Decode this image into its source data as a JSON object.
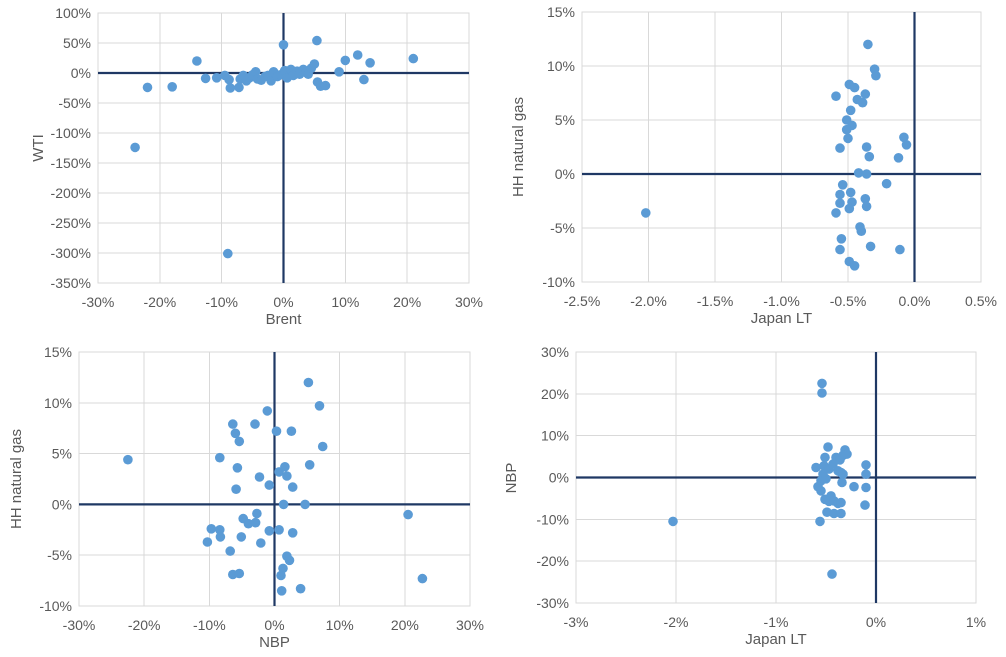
{
  "colors": {
    "background": "#ffffff",
    "dot_fill": "#5B9BD5",
    "zero_line": "#1F3864",
    "gridline": "#D9D9D9",
    "plot_border": "#D9D9D9",
    "label_text": "#595959"
  },
  "chart_data": [
    {
      "type": "scatter",
      "xlabel": "Brent",
      "ylabel": "WTI",
      "xlim": [
        -30,
        30
      ],
      "ylim": [
        -350,
        100
      ],
      "xticks": [
        -30,
        -20,
        -10,
        0,
        10,
        20,
        30
      ],
      "xtick_labels": [
        "-30%",
        "-20%",
        "-10%",
        "0%",
        "10%",
        "20%",
        "30%"
      ],
      "yticks": [
        100,
        50,
        0,
        -50,
        -100,
        -150,
        -200,
        -250,
        -300,
        -350
      ],
      "ytick_labels": [
        "100%",
        "50%",
        "0%",
        "-50%",
        "-100%",
        "-150%",
        "-200%",
        "-250%",
        "-300%",
        "-350%"
      ],
      "zero_cross": [
        0,
        0
      ],
      "grid": true,
      "legend": "none",
      "points": [
        [
          -24,
          -124
        ],
        [
          -9,
          -301
        ],
        [
          -22,
          -24
        ],
        [
          -18,
          -23
        ],
        [
          -14,
          20
        ],
        [
          -12.6,
          -9
        ],
        [
          -10.8,
          -8
        ],
        [
          -9.5,
          -4
        ],
        [
          -8.8,
          -11
        ],
        [
          -8.6,
          -25
        ],
        [
          -7.2,
          -24
        ],
        [
          -7,
          -10
        ],
        [
          -6.5,
          -4
        ],
        [
          -6,
          -13
        ],
        [
          -5.5,
          -8
        ],
        [
          -5,
          -3
        ],
        [
          -4.5,
          2
        ],
        [
          -4.2,
          -10
        ],
        [
          -3.6,
          -12
        ],
        [
          -3,
          -6
        ],
        [
          -2.5,
          -4
        ],
        [
          -2,
          -13
        ],
        [
          -1.6,
          2
        ],
        [
          -1,
          -6
        ],
        [
          -0.5,
          -3
        ],
        [
          0,
          47
        ],
        [
          0.2,
          4
        ],
        [
          0.6,
          -8
        ],
        [
          1.2,
          6
        ],
        [
          1.6,
          -4
        ],
        [
          2.2,
          3
        ],
        [
          2.6,
          -2
        ],
        [
          3.2,
          6
        ],
        [
          3.6,
          1
        ],
        [
          4,
          -2
        ],
        [
          4.5,
          8
        ],
        [
          5.4,
          54
        ],
        [
          5,
          15
        ],
        [
          5.5,
          -15
        ],
        [
          6,
          -22
        ],
        [
          6.8,
          -21
        ],
        [
          9,
          2
        ],
        [
          10,
          21
        ],
        [
          12,
          30
        ],
        [
          13,
          -11
        ],
        [
          14,
          17
        ],
        [
          21,
          24
        ]
      ]
    },
    {
      "type": "scatter",
      "xlabel": "Japan LT",
      "ylabel": "HH natural gas",
      "xlim": [
        -2.5,
        0.5
      ],
      "ylim": [
        -10,
        15
      ],
      "xticks": [
        -2.5,
        -2.0,
        -1.5,
        -1.0,
        -0.5,
        0.0,
        0.5
      ],
      "xtick_labels": [
        "-2.5%",
        "-2.0%",
        "-1.5%",
        "-1.0%",
        "-0.5%",
        "0.0%",
        "0.5%"
      ],
      "yticks": [
        15,
        10,
        5,
        0,
        -5,
        -10
      ],
      "ytick_labels": [
        "15%",
        "10%",
        "5%",
        "0%",
        "-5%",
        "-10%"
      ],
      "zero_cross": [
        0,
        0
      ],
      "grid": true,
      "legend": "none",
      "points": [
        [
          -2.02,
          -3.6
        ],
        [
          -0.35,
          12
        ],
        [
          -0.3,
          9.7
        ],
        [
          -0.29,
          9.1
        ],
        [
          -0.49,
          8.3
        ],
        [
          -0.45,
          8.0
        ],
        [
          -0.59,
          7.2
        ],
        [
          -0.37,
          7.4
        ],
        [
          -0.43,
          6.9
        ],
        [
          -0.39,
          6.6
        ],
        [
          -0.48,
          5.9
        ],
        [
          -0.51,
          5.0
        ],
        [
          -0.47,
          4.5
        ],
        [
          -0.51,
          4.1
        ],
        [
          -0.5,
          3.3
        ],
        [
          -0.08,
          3.4
        ],
        [
          -0.06,
          2.7
        ],
        [
          -0.36,
          2.5
        ],
        [
          -0.56,
          2.4
        ],
        [
          -0.34,
          1.6
        ],
        [
          -0.12,
          1.5
        ],
        [
          -0.42,
          0.1
        ],
        [
          -0.36,
          0.0
        ],
        [
          -0.21,
          -0.9
        ],
        [
          -0.54,
          -1.0
        ],
        [
          -0.48,
          -1.7
        ],
        [
          -0.56,
          -1.9
        ],
        [
          -0.47,
          -2.6
        ],
        [
          -0.56,
          -2.7
        ],
        [
          -0.37,
          -2.3
        ],
        [
          -0.49,
          -3.2
        ],
        [
          -0.36,
          -3.0
        ],
        [
          -0.59,
          -3.6
        ],
        [
          -0.41,
          -4.9
        ],
        [
          -0.4,
          -5.3
        ],
        [
          -0.55,
          -6.0
        ],
        [
          -0.33,
          -6.7
        ],
        [
          -0.11,
          -7.0
        ],
        [
          -0.56,
          -7.0
        ],
        [
          -0.49,
          -8.1
        ],
        [
          -0.45,
          -8.5
        ]
      ]
    },
    {
      "type": "scatter",
      "xlabel": "NBP",
      "ylabel": "HH natural gas",
      "xlim": [
        -30,
        30
      ],
      "ylim": [
        -10,
        15
      ],
      "xticks": [
        -30,
        -20,
        -10,
        0,
        10,
        20,
        30
      ],
      "xtick_labels": [
        "-30%",
        "-20%",
        "-10%",
        "0%",
        "10%",
        "20%",
        "30%"
      ],
      "yticks": [
        15,
        10,
        5,
        0,
        -5,
        -10
      ],
      "ytick_labels": [
        "15%",
        "10%",
        "5%",
        "0%",
        "-5%",
        "-10%"
      ],
      "zero_cross": [
        0,
        0
      ],
      "grid": true,
      "legend": "none",
      "points": [
        [
          -22.5,
          4.4
        ],
        [
          -8.4,
          4.6
        ],
        [
          -6.4,
          7.9
        ],
        [
          -6.0,
          7.0
        ],
        [
          -5.4,
          6.2
        ],
        [
          -5.7,
          3.6
        ],
        [
          -5.9,
          1.5
        ],
        [
          -3.0,
          7.9
        ],
        [
          -2.3,
          2.7
        ],
        [
          -1.1,
          9.2
        ],
        [
          -0.8,
          1.9
        ],
        [
          0.3,
          7.2
        ],
        [
          2.6,
          7.2
        ],
        [
          0.7,
          3.2
        ],
        [
          1.6,
          3.7
        ],
        [
          1.9,
          2.8
        ],
        [
          2.8,
          1.7
        ],
        [
          5.4,
          3.9
        ],
        [
          5.2,
          12.0
        ],
        [
          6.9,
          9.7
        ],
        [
          7.4,
          5.7
        ],
        [
          1.4,
          0.0
        ],
        [
          4.7,
          0.0
        ],
        [
          -2.7,
          -0.9
        ],
        [
          -2.9,
          -1.8
        ],
        [
          -4.8,
          -1.4
        ],
        [
          -4.0,
          -1.9
        ],
        [
          -9.7,
          -2.4
        ],
        [
          -8.4,
          -2.5
        ],
        [
          -8.3,
          -3.2
        ],
        [
          -10.3,
          -3.7
        ],
        [
          -5.1,
          -3.2
        ],
        [
          -2.1,
          -3.8
        ],
        [
          -0.8,
          -2.6
        ],
        [
          0.7,
          -2.5
        ],
        [
          2.8,
          -2.8
        ],
        [
          -6.8,
          -4.6
        ],
        [
          -6.4,
          -6.9
        ],
        [
          -5.4,
          -6.8
        ],
        [
          1.9,
          -5.1
        ],
        [
          2.3,
          -5.5
        ],
        [
          1.3,
          -6.3
        ],
        [
          1.0,
          -7.0
        ],
        [
          1.1,
          -8.5
        ],
        [
          4.0,
          -8.3
        ],
        [
          20.5,
          -1.0
        ],
        [
          22.7,
          -7.3
        ]
      ]
    },
    {
      "type": "scatter",
      "xlabel": "Japan LT",
      "ylabel": "NBP",
      "xlim": [
        -3,
        1
      ],
      "ylim": [
        -30,
        30
      ],
      "xticks": [
        -3,
        -2,
        -1,
        0,
        1
      ],
      "xtick_labels": [
        "-3%",
        "-2%",
        "-1%",
        "0%",
        "1%"
      ],
      "yticks": [
        30,
        20,
        10,
        0,
        -10,
        -20,
        -30
      ],
      "ytick_labels": [
        "30%",
        "20%",
        "10%",
        "0%",
        "-10%",
        "-20%",
        "-30%"
      ],
      "zero_cross": [
        0,
        0
      ],
      "grid": true,
      "legend": "none",
      "points": [
        [
          -2.03,
          -10.5
        ],
        [
          -0.54,
          22.5
        ],
        [
          -0.54,
          20.2
        ],
        [
          -0.48,
          7.3
        ],
        [
          -0.31,
          6.6
        ],
        [
          -0.29,
          5.6
        ],
        [
          -0.51,
          4.8
        ],
        [
          -0.4,
          4.8
        ],
        [
          -0.36,
          4.2
        ],
        [
          -0.33,
          5.3
        ],
        [
          -0.6,
          2.4
        ],
        [
          -0.52,
          2.8
        ],
        [
          -0.47,
          2.0
        ],
        [
          -0.43,
          3.2
        ],
        [
          -0.1,
          3.0
        ],
        [
          -0.38,
          1.6
        ],
        [
          -0.35,
          1.2
        ],
        [
          -0.33,
          0.8
        ],
        [
          -0.53,
          0.8
        ],
        [
          -0.1,
          0.8
        ],
        [
          -0.55,
          -0.8
        ],
        [
          -0.5,
          -0.3
        ],
        [
          -0.34,
          -1.2
        ],
        [
          -0.58,
          -2.2
        ],
        [
          -0.55,
          -3.2
        ],
        [
          -0.22,
          -2.2
        ],
        [
          -0.1,
          -2.4
        ],
        [
          -0.51,
          -5.2
        ],
        [
          -0.47,
          -5.7
        ],
        [
          -0.45,
          -4.4
        ],
        [
          -0.42,
          -5.6
        ],
        [
          -0.38,
          -6.2
        ],
        [
          -0.35,
          -6.0
        ],
        [
          -0.11,
          -6.6
        ],
        [
          -0.49,
          -8.3
        ],
        [
          -0.42,
          -8.6
        ],
        [
          -0.35,
          -8.6
        ],
        [
          -0.56,
          -10.5
        ],
        [
          -0.44,
          -23.1
        ]
      ]
    }
  ]
}
